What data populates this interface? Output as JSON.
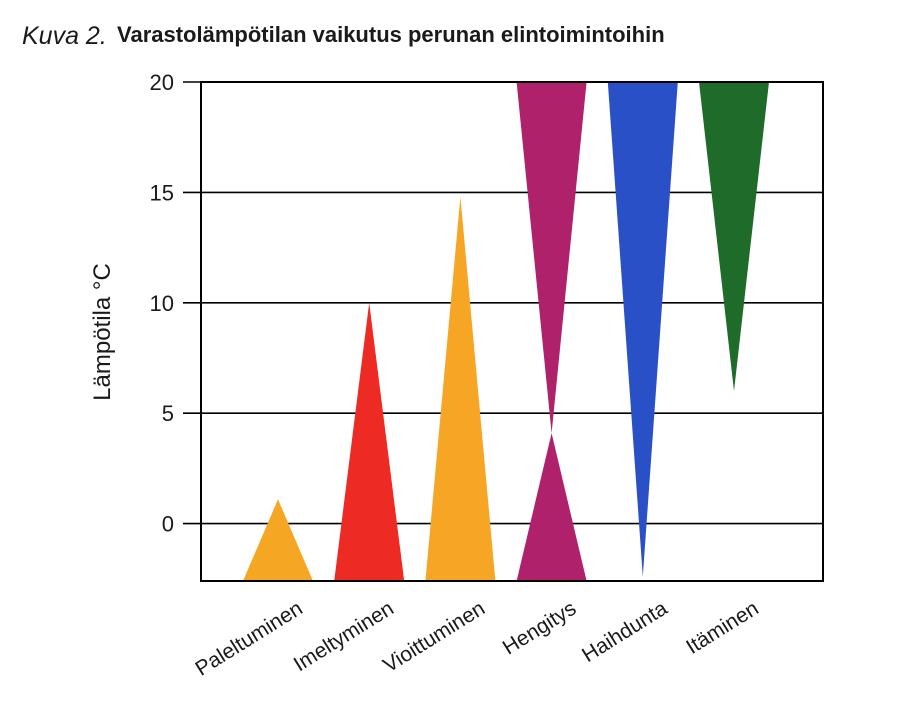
{
  "title_prefix": "Kuva 2.",
  "title": "Varastolämpötilan vaikutus perunan elintoimintoihin",
  "chart_data": {
    "type": "range-triangle",
    "title": "Varastolämpötilan vaikutus perunan elintoimintoihin",
    "ylabel": "Lämpötila °C",
    "ylim": [
      -2.6,
      20
    ],
    "yticks": [
      0,
      5,
      10,
      15,
      20
    ],
    "grid": "horizontal",
    "categories": [
      "Paleltuminen",
      "Imeltyminen",
      "Vioittuminen",
      "Hengitys",
      "Haihdunta",
      "Itäminen"
    ],
    "series": [
      {
        "category": "Paleltuminen",
        "color": "#F5A623",
        "shapes": [
          {
            "apex": 1.1,
            "base": -2.6
          }
        ]
      },
      {
        "category": "Imeltyminen",
        "color": "#EE2A24",
        "shapes": [
          {
            "apex": 10,
            "base": -2.6
          }
        ]
      },
      {
        "category": "Vioittuminen",
        "color": "#F7A525",
        "shapes": [
          {
            "apex": 14.8,
            "base": -2.6
          }
        ]
      },
      {
        "category": "Hengitys",
        "color": "#B0216B",
        "shapes": [
          {
            "apex": 4.1,
            "base": 20
          },
          {
            "apex": 4.1,
            "base": -2.6
          }
        ]
      },
      {
        "category": "Haihdunta",
        "color": "#2A50C8",
        "shapes": [
          {
            "apex": -2.4,
            "base": 20
          }
        ]
      },
      {
        "category": "Itäminen",
        "color": "#1E6B2A",
        "shapes": [
          {
            "apex": 6,
            "base": 20
          }
        ]
      }
    ]
  }
}
